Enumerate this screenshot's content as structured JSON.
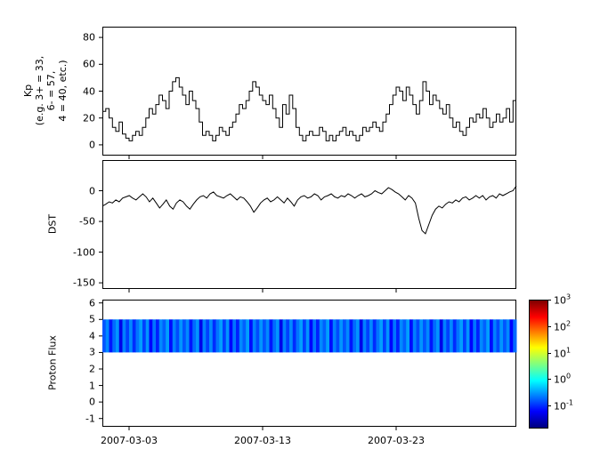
{
  "figure": {
    "background": "#ffffff",
    "axis_color": "#000000",
    "x_axis": {
      "range_days": [
        0,
        31
      ],
      "ticks": [
        {
          "day": 2,
          "label": "2007-03-03"
        },
        {
          "day": 12,
          "label": "2007-03-13"
        },
        {
          "day": 22,
          "label": "2007-03-23"
        }
      ]
    }
  },
  "chart_data": [
    {
      "type": "line",
      "line_style": "step",
      "series_name": "Kp",
      "ylabel_lines": [
        "Kp",
        "(e.g. 3+ = 33,",
        "6- = 57,",
        "4 = 40, etc.)"
      ],
      "ylim": [
        -8,
        88
      ],
      "yticks": [
        0,
        20,
        40,
        60,
        80
      ],
      "line_color": "#000000",
      "x_start_day": 0,
      "x_step_days": 0.25,
      "values": [
        25,
        27,
        20,
        13,
        10,
        17,
        8,
        5,
        3,
        7,
        10,
        7,
        13,
        20,
        27,
        23,
        30,
        37,
        33,
        27,
        40,
        47,
        50,
        43,
        37,
        30,
        40,
        33,
        27,
        17,
        7,
        10,
        7,
        3,
        7,
        13,
        10,
        7,
        13,
        17,
        23,
        30,
        27,
        33,
        40,
        47,
        43,
        37,
        33,
        30,
        37,
        27,
        20,
        13,
        30,
        23,
        37,
        27,
        13,
        7,
        3,
        7,
        10,
        7,
        7,
        13,
        10,
        3,
        7,
        3,
        7,
        10,
        13,
        7,
        10,
        7,
        3,
        7,
        13,
        10,
        13,
        17,
        13,
        10,
        17,
        23,
        30,
        37,
        43,
        40,
        33,
        43,
        37,
        30,
        23,
        33,
        47,
        40,
        30,
        37,
        33,
        27,
        23,
        30,
        20,
        13,
        17,
        10,
        7,
        13,
        20,
        17,
        23,
        20,
        27,
        20,
        13,
        17,
        23,
        17,
        20,
        27,
        17,
        33
      ]
    },
    {
      "type": "line",
      "series_name": "DST",
      "ylabel": "DST",
      "ylim": [
        -160,
        50
      ],
      "yticks": [
        0,
        -50,
        -100,
        -150
      ],
      "line_color": "#000000",
      "values": [
        -25,
        -22,
        -18,
        -20,
        -15,
        -18,
        -12,
        -10,
        -8,
        -12,
        -15,
        -10,
        -5,
        -10,
        -18,
        -12,
        -20,
        -28,
        -22,
        -15,
        -25,
        -30,
        -20,
        -15,
        -18,
        -25,
        -30,
        -22,
        -15,
        -10,
        -8,
        -12,
        -5,
        -2,
        -8,
        -10,
        -12,
        -8,
        -5,
        -10,
        -15,
        -10,
        -12,
        -18,
        -25,
        -35,
        -28,
        -20,
        -15,
        -12,
        -18,
        -15,
        -10,
        -15,
        -20,
        -12,
        -18,
        -25,
        -15,
        -10,
        -8,
        -12,
        -10,
        -5,
        -8,
        -15,
        -10,
        -8,
        -5,
        -10,
        -12,
        -8,
        -10,
        -5,
        -8,
        -12,
        -8,
        -5,
        -10,
        -8,
        -5,
        0,
        -3,
        -5,
        0,
        5,
        2,
        -2,
        -5,
        -10,
        -15,
        -8,
        -12,
        -20,
        -45,
        -65,
        -70,
        -55,
        -40,
        -30,
        -25,
        -28,
        -22,
        -18,
        -20,
        -15,
        -18,
        -12,
        -10,
        -15,
        -12,
        -8,
        -12,
        -8,
        -15,
        -10,
        -8,
        -12,
        -5,
        -8,
        -5,
        -2,
        0,
        8
      ]
    },
    {
      "type": "heatmap",
      "series_name": "Proton Flux",
      "ylabel": "Proton Flux",
      "ylim": [
        -1.5,
        6.2
      ],
      "yticks": [
        6,
        5,
        4,
        3,
        2,
        1,
        0,
        -1
      ],
      "band_y": [
        3,
        5
      ],
      "log10_flux": [
        -0.8,
        -0.55,
        -1.1,
        -0.7,
        -0.5,
        -1.3,
        -0.6,
        -0.9,
        -0.55,
        -1.0,
        -0.65,
        -0.45,
        -0.9,
        -0.5,
        -1.2,
        -0.65,
        -1.05,
        -0.55,
        -0.75,
        -0.45,
        -1.15,
        -0.6,
        -0.85,
        -0.5,
        -0.8,
        -0.55,
        -1.1,
        -0.7,
        -0.5,
        -1.3,
        -0.6,
        -0.9,
        -0.55,
        -1.0,
        -0.65,
        -0.45,
        -0.9,
        -0.5,
        -1.2,
        -0.65,
        -1.05,
        -0.55,
        -0.75,
        -0.45,
        -1.15,
        -0.6,
        -0.85,
        -0.5,
        -0.8,
        -0.55,
        -1.1,
        -0.7,
        -0.5,
        -1.3,
        -0.6,
        -0.9,
        -0.55,
        -1.0,
        -0.65,
        -0.45,
        -0.9,
        -0.5,
        -1.2,
        -0.65,
        -1.05,
        -0.55,
        -0.75,
        -0.45,
        -1.15,
        -0.6,
        -0.85,
        -0.5,
        -0.8,
        -0.55,
        -1.1,
        -0.7,
        -0.5,
        -1.3,
        -0.6,
        -0.9,
        -0.55,
        -1.0,
        -0.65,
        -0.45,
        -0.9,
        -0.5,
        -1.2,
        -0.65,
        -1.05,
        -0.55,
        -0.75,
        -0.45,
        -1.15,
        -0.6,
        -0.85,
        -0.5,
        -0.8,
        -0.55,
        -1.1,
        -0.7,
        -0.5,
        -1.3,
        -0.6,
        -0.9,
        -0.55,
        -1.0,
        -0.65,
        -0.45,
        -0.9,
        -0.5,
        -1.2,
        -0.65,
        -1.05,
        -0.55,
        -0.75,
        -0.45,
        -1.15,
        -0.6,
        -0.85,
        -0.5,
        -0.8,
        -0.55,
        -1.2,
        -0.7
      ],
      "colorbar": {
        "scale_log_range": [
          -1.8,
          3
        ],
        "tick_exponents": [
          3,
          2,
          1,
          0,
          -1
        ],
        "colormap": "jet",
        "stops": [
          {
            "color": "#00007f",
            "pos": 0
          },
          {
            "color": "#0000ff",
            "pos": 13
          },
          {
            "color": "#00ffff",
            "pos": 37
          },
          {
            "color": "#ffff00",
            "pos": 63
          },
          {
            "color": "#ff0000",
            "pos": 87
          },
          {
            "color": "#7f0000",
            "pos": 100
          }
        ]
      }
    }
  ]
}
